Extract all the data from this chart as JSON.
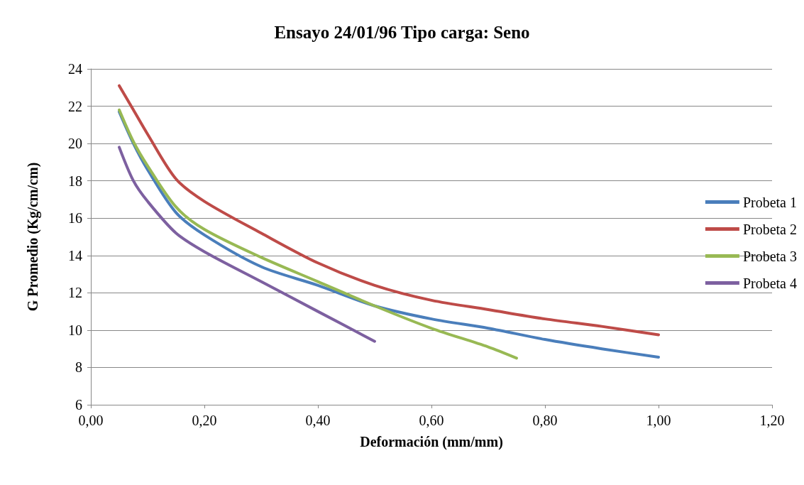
{
  "chart_data": {
    "type": "line",
    "title": "Ensayo 24/01/96 Tipo carga: Seno",
    "xlabel": "Deformación (mm/mm)",
    "ylabel": "G Promedio (Kg/cm/cm)",
    "series": [
      {
        "name": "Probeta 1",
        "color": "#4a7ebb",
        "x": [
          0.05,
          0.075,
          0.1,
          0.15,
          0.2,
          0.3,
          0.4,
          0.5,
          0.6,
          0.7,
          0.8,
          0.9,
          1.0
        ],
        "values": [
          21.7,
          20,
          18.6,
          16.3,
          15.1,
          13.4,
          12.4,
          11.3,
          10.6,
          10.1,
          9.5,
          9.0,
          8.55
        ]
      },
      {
        "name": "Probeta 2",
        "color": "#be4b48",
        "x": [
          0.05,
          0.075,
          0.1,
          0.15,
          0.2,
          0.3,
          0.4,
          0.5,
          0.6,
          0.7,
          0.8,
          0.9,
          1.0
        ],
        "values": [
          23.1,
          21.8,
          20.5,
          18.1,
          16.9,
          15.2,
          13.6,
          12.4,
          11.6,
          11.1,
          10.6,
          10.2,
          9.75
        ]
      },
      {
        "name": "Probeta 3",
        "color": "#98b954",
        "x": [
          0.05,
          0.075,
          0.1,
          0.15,
          0.2,
          0.3,
          0.4,
          0.5,
          0.6,
          0.7,
          0.75
        ],
        "values": [
          21.8,
          20.1,
          18.8,
          16.6,
          15.4,
          13.9,
          12.6,
          11.3,
          10.1,
          9.1,
          8.5
        ]
      },
      {
        "name": "Probeta 4",
        "color": "#7d60a0",
        "x": [
          0.05,
          0.075,
          0.1,
          0.15,
          0.2,
          0.3,
          0.4,
          0.5
        ],
        "values": [
          19.8,
          18,
          16.9,
          15.2,
          14.2,
          12.6,
          11,
          9.4
        ]
      }
    ],
    "xlim": [
      0,
      1.2
    ],
    "xticks": [
      {
        "value": 0,
        "label": "0,00"
      },
      {
        "value": 0.2,
        "label": "0,20"
      },
      {
        "value": 0.4,
        "label": "0,40"
      },
      {
        "value": 0.6,
        "label": "0,60"
      },
      {
        "value": 0.8,
        "label": "0,80"
      },
      {
        "value": 1.0,
        "label": "1,00"
      },
      {
        "value": 1.2,
        "label": "1,20"
      }
    ],
    "ylim": [
      6,
      24
    ],
    "yticks": [
      6,
      8,
      10,
      12,
      14,
      16,
      18,
      20,
      22,
      24
    ],
    "grid": "y",
    "legend": "right",
    "marker": "none",
    "line_style": "solid"
  }
}
